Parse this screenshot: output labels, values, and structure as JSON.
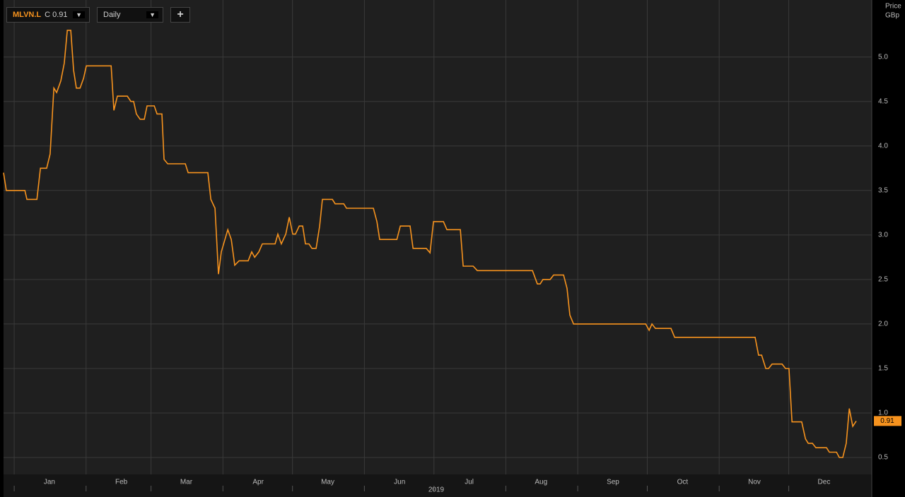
{
  "toolbar": {
    "symbol": "MLVN.L",
    "close": "C 0.91",
    "interval": "Daily"
  },
  "chart_data": {
    "type": "line",
    "color": "#f7931e",
    "grid": true,
    "y_label": [
      "Price",
      "GBp"
    ],
    "x_label": "2019",
    "last_label": "0.91",
    "xlim": [
      -4.6,
      369.8
    ],
    "ylim": [
      0.31,
      5.64
    ],
    "xticks": [
      {
        "value": 0,
        "label": "Jan"
      },
      {
        "value": 31,
        "label": "Feb"
      },
      {
        "value": 59,
        "label": "Mar"
      },
      {
        "value": 90,
        "label": "Apr"
      },
      {
        "value": 120,
        "label": "May"
      },
      {
        "value": 151,
        "label": "Jun"
      },
      {
        "value": 181,
        "label": "Jul"
      },
      {
        "value": 212,
        "label": "Aug"
      },
      {
        "value": 243,
        "label": "Sep"
      },
      {
        "value": 273,
        "label": "Oct"
      },
      {
        "value": 304,
        "label": "Nov"
      },
      {
        "value": 334,
        "label": "Dec"
      }
    ],
    "yticks": [
      0.5,
      {
        "value": 1,
        "label": "1.0"
      },
      1.5,
      {
        "value": 2,
        "label": "2.0"
      },
      2.5,
      {
        "value": 3,
        "label": "3.0"
      },
      3.5,
      {
        "value": 4,
        "label": "4.0"
      },
      4.5,
      {
        "value": 5,
        "label": "5.0"
      }
    ],
    "x": [
      -4.6,
      -3.4,
      4.6,
      5.5,
      9.8,
      11.3,
      14.0,
      15.5,
      17.1,
      18.3,
      20.1,
      21.6,
      22.9,
      24.4,
      25.6,
      26.8,
      28.4,
      29.9,
      31.1,
      41.8,
      43.0,
      44.5,
      48.8,
      50.3,
      51.5,
      52.7,
      54.3,
      56.1,
      57.3,
      60.4,
      61.6,
      63.7,
      64.6,
      66.2,
      73.8,
      75.0,
      83.5,
      84.8,
      86.6,
      88.1,
      89.3,
      92.1,
      93.6,
      95.1,
      97.0,
      100.9,
      102.4,
      103.7,
      105.5,
      107.0,
      112.5,
      113.7,
      115.2,
      117.1,
      118.6,
      120.1,
      121.3,
      122.9,
      124.4,
      125.6,
      127.1,
      128.4,
      130.2,
      131.7,
      132.9,
      137.2,
      138.4,
      142.1,
      143.3,
      154.9,
      156.4,
      157.6,
      165.0,
      166.5,
      170.7,
      172.0,
      177.7,
      179.3,
      180.8,
      185.1,
      186.6,
      192.4,
      193.6,
      197.9,
      199.7,
      223.5,
      225.6,
      226.8,
      228.0,
      231.1,
      232.6,
      236.9,
      238.4,
      239.6,
      241.2,
      272.3,
      273.8,
      275.0,
      276.5,
      283.2,
      284.8,
      319.5,
      321.0,
      322.3,
      324.1,
      325.3,
      326.8,
      331.1,
      332.6,
      334.1,
      335.4,
      339.6,
      341.2,
      342.4,
      344.2,
      345.7,
      350.3,
      351.5,
      354.6,
      355.8,
      357.3,
      358.8,
      360.1,
      361.6,
      363.1
    ],
    "values": [
      3.7,
      3.5,
      3.5,
      3.4,
      3.4,
      3.75,
      3.75,
      3.91,
      4.65,
      4.6,
      4.73,
      4.93,
      5.3,
      5.3,
      4.85,
      4.65,
      4.65,
      4.76,
      4.9,
      4.9,
      4.4,
      4.56,
      4.56,
      4.5,
      4.5,
      4.36,
      4.3,
      4.3,
      4.45,
      4.45,
      4.36,
      4.36,
      3.85,
      3.8,
      3.8,
      3.7,
      3.7,
      3.4,
      3.3,
      2.56,
      2.81,
      3.06,
      2.95,
      2.66,
      2.71,
      2.71,
      2.81,
      2.75,
      2.81,
      2.9,
      2.9,
      3.01,
      2.9,
      3.01,
      3.2,
      3.01,
      3.01,
      3.1,
      3.1,
      2.9,
      2.9,
      2.85,
      2.85,
      3.1,
      3.4,
      3.4,
      3.35,
      3.35,
      3.3,
      3.3,
      3.15,
      2.95,
      2.95,
      3.1,
      3.1,
      2.85,
      2.85,
      2.8,
      3.15,
      3.15,
      3.06,
      3.06,
      2.65,
      2.65,
      2.6,
      2.6,
      2.45,
      2.45,
      2.5,
      2.5,
      2.55,
      2.55,
      2.4,
      2.1,
      2.0,
      2.0,
      1.93,
      2.0,
      1.95,
      1.95,
      1.85,
      1.85,
      1.65,
      1.65,
      1.5,
      1.5,
      1.55,
      1.55,
      1.5,
      1.5,
      0.9,
      0.9,
      0.71,
      0.66,
      0.66,
      0.61,
      0.61,
      0.56,
      0.56,
      0.5,
      0.5,
      0.66,
      1.05,
      0.85,
      0.91
    ]
  }
}
